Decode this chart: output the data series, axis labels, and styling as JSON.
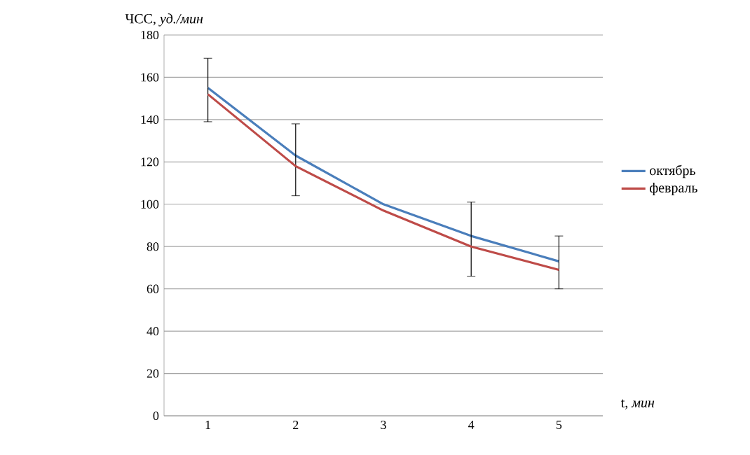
{
  "chart_data": {
    "type": "line",
    "xlabel": "t, *мин*",
    "ylabel": "ЧСС, *уд./мин*",
    "categories": [
      "1",
      "2",
      "3",
      "4",
      "5"
    ],
    "series": [
      {
        "name": "октябрь",
        "color": "#4a7ebb",
        "values": [
          155,
          123,
          100,
          85,
          73
        ],
        "errors": [
          [
            139,
            169
          ],
          [
            104,
            138
          ],
          null,
          [
            66,
            101
          ],
          [
            60,
            85
          ]
        ]
      },
      {
        "name": "февраль",
        "color": "#be4b48",
        "values": [
          152,
          118,
          97,
          80,
          69
        ]
      }
    ],
    "ylim": [
      0,
      180
    ],
    "yticks": [
      0,
      20,
      40,
      60,
      80,
      100,
      120,
      140,
      160,
      180
    ],
    "grid": "y",
    "legend": "right",
    "marker": "none",
    "line_style": "solid"
  }
}
